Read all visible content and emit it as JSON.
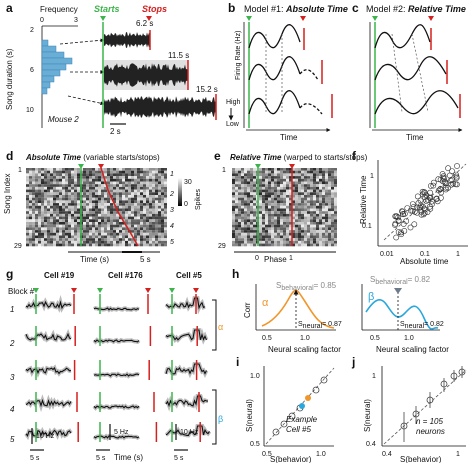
{
  "panels": {
    "a": {
      "label": "a",
      "frequency_label": "Frequency",
      "freq_ticks": [
        "0",
        "3"
      ],
      "ylabel": "Song duration (s)",
      "y_ticks": [
        "2",
        "6",
        "10"
      ],
      "starts_label": "Starts",
      "stops_label": "Stops",
      "durations": [
        "6.2 s",
        "11.5 s",
        "15.2 s"
      ],
      "mouse_label": "Mouse 2",
      "scalebar": "2 s"
    },
    "b": {
      "label": "b",
      "title_prefix": "Model #1: ",
      "title_em": "Absolute Time",
      "ylabel": "Firing Rate (Hz)",
      "xlabel": "Time",
      "high": "High",
      "low": "Low"
    },
    "c": {
      "label": "c",
      "title_prefix": "Model #2: ",
      "title_em": "Relative Time",
      "xlabel": "Time"
    },
    "d": {
      "label": "d",
      "title_em": "Absolute Time",
      "title_rest": " (variable starts/stops)",
      "ylabel": "Song Index",
      "y_ticks": [
        "1",
        "29"
      ],
      "xlabel": "Time (s)",
      "scalebar": "5 s",
      "spikes_label": "Spikes",
      "spikes_ticks": [
        "30",
        "0"
      ],
      "row_labels": [
        "1",
        "2",
        "3",
        "4",
        "5"
      ]
    },
    "e": {
      "label": "e",
      "title_em": "Relative Time",
      "title_rest": " (warped to starts/stops)",
      "y_ticks": [
        "1",
        "29"
      ],
      "x_ticks": [
        "0",
        "1"
      ],
      "xlabel": "Phase"
    },
    "f": {
      "label": "f",
      "ylabel": "Relative Time",
      "xlabel": "Absolute time",
      "y_ticks": [
        "1",
        "0.1"
      ],
      "x_ticks": [
        "0.01",
        "0.1",
        "1"
      ]
    },
    "g": {
      "label": "g",
      "block_label": "Block #",
      "blocks": [
        "1",
        "2",
        "3",
        "4",
        "5"
      ],
      "cells": [
        "Cell #19",
        "Cell #176",
        "Cell #5"
      ],
      "scale_a": "10 Hz",
      "scale_b": "5 Hz",
      "scale_c": "10 Hz",
      "time_scale_a": "5 s",
      "time_scale_b": "5 s",
      "time_scale_c": "5 s",
      "xlabel": "Time (s)",
      "alpha": "α",
      "beta": "β"
    },
    "h": {
      "label": "h",
      "ylabel": "Corr",
      "xlabel": "Neural scaling factor",
      "x_ticks": [
        "0.5",
        "1.0"
      ],
      "alpha_sb": "= 0.85",
      "alpha_sn": "= 0.87",
      "beta_sb": "= 0.82",
      "beta_sn": "= 0.82",
      "s_b_sub": "behavioral",
      "s_n_sub": "neural",
      "s": "S",
      "alpha": "α",
      "beta": "β"
    },
    "i": {
      "label": "i",
      "ylabel": "S(neural)",
      "xlabel": "S(behavior)",
      "x_ticks": [
        "0.5",
        "1.0"
      ],
      "y_ticks": [
        "1.0",
        "0.5"
      ],
      "caption1": "Example",
      "caption2": "Cell #5"
    },
    "j": {
      "label": "j",
      "ylabel": "S(neural)",
      "xlabel": "S(behavior)",
      "x_ticks": [
        "0.4",
        "1"
      ],
      "y_ticks": [
        "1",
        "0.4"
      ],
      "caption1": "n = 105",
      "caption2": "neurons"
    }
  },
  "colors": {
    "start": "#3cb44b",
    "stop": "#d4201e",
    "histogram": "#6aaed6",
    "alpha": "#f0962a",
    "beta": "#2aa7dc"
  }
}
